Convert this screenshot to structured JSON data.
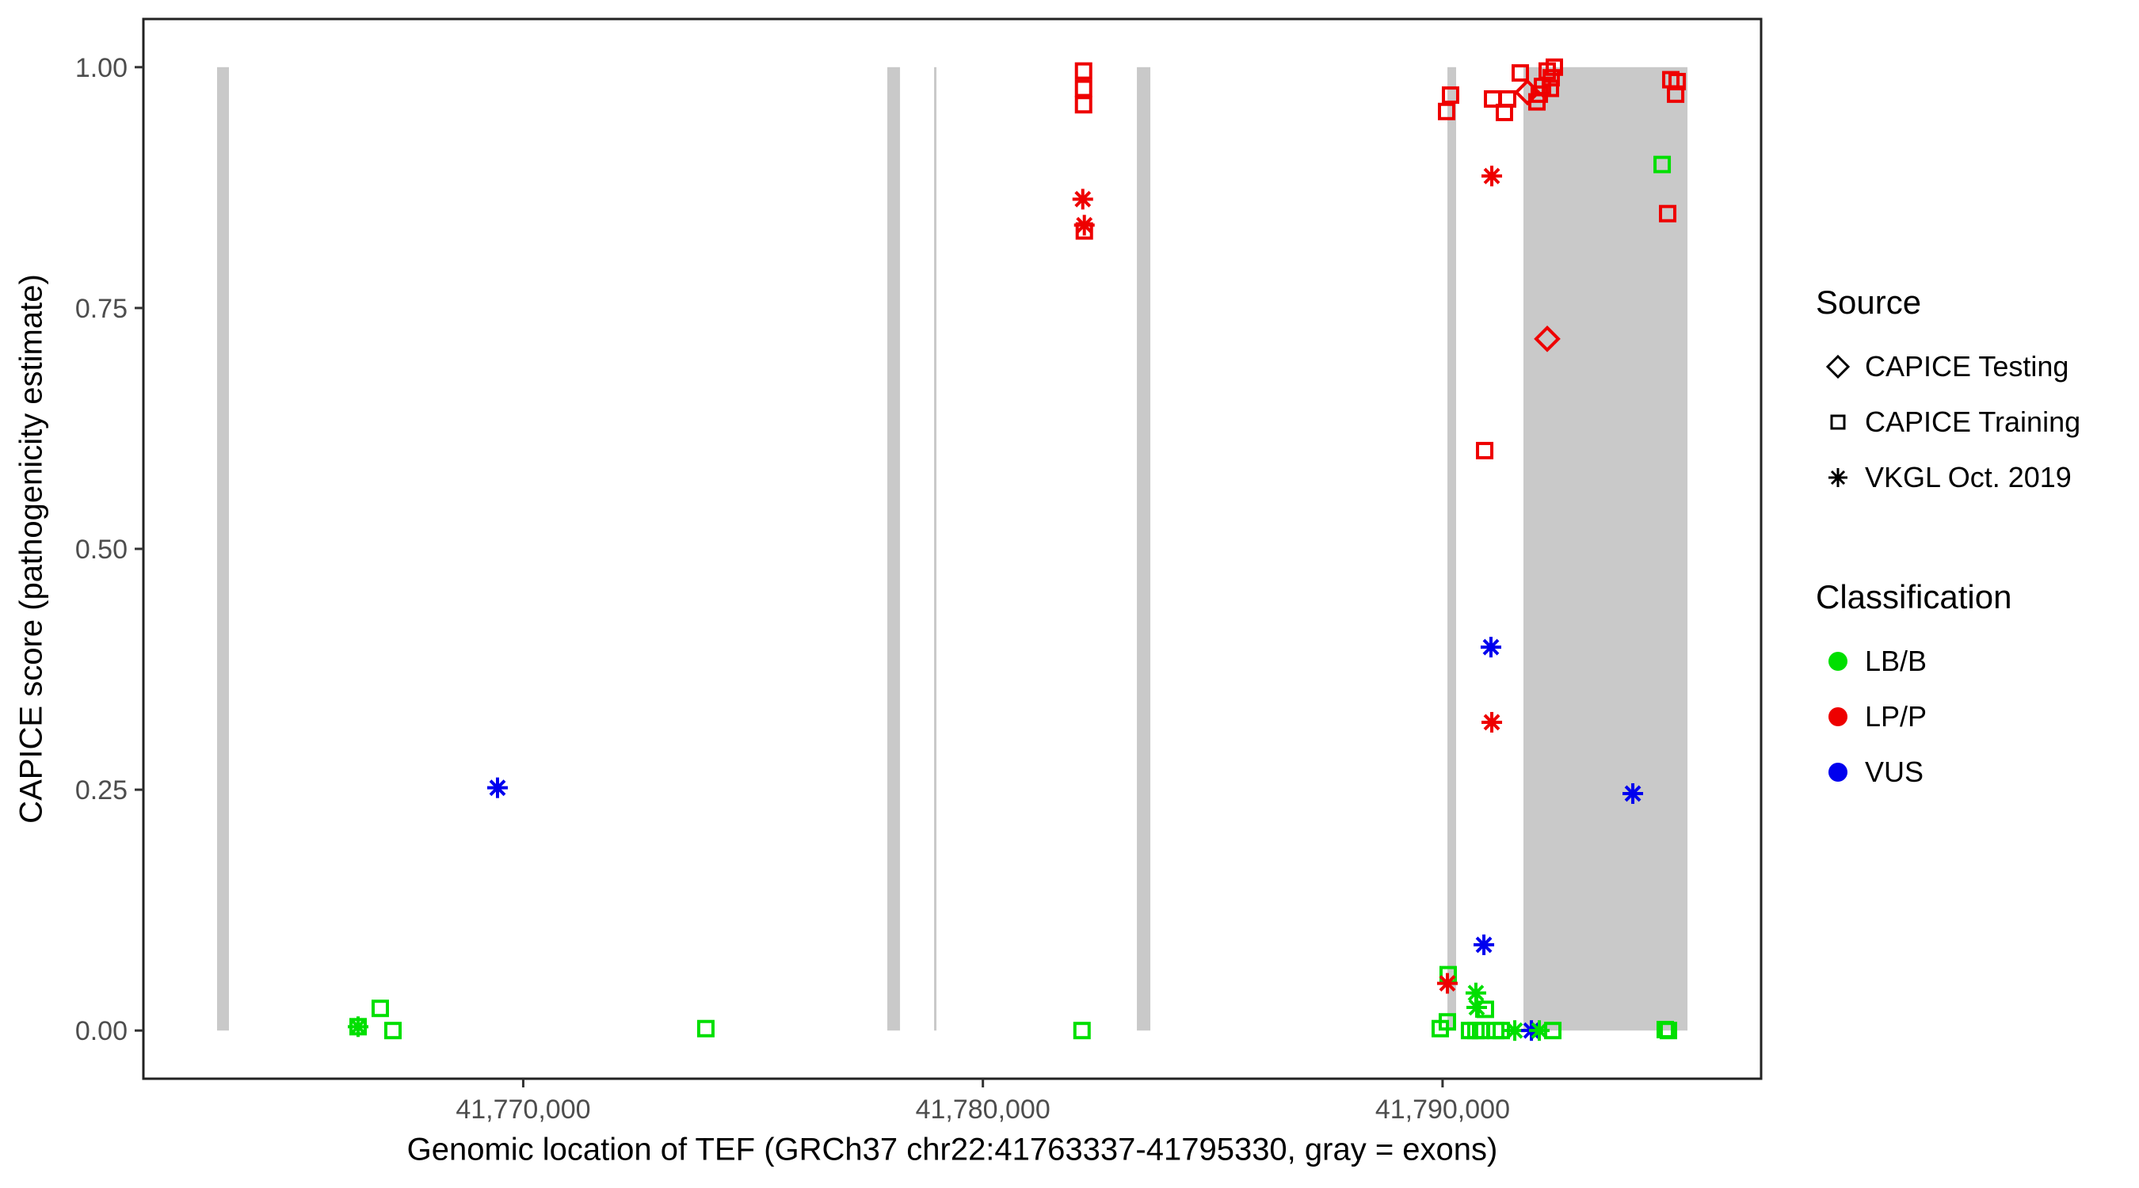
{
  "legend": {
    "source": {
      "title": "Source",
      "items": [
        {
          "label": "CAPICE Testing",
          "shape": "diamond"
        },
        {
          "label": "CAPICE Training",
          "shape": "square"
        },
        {
          "label": "VKGL Oct. 2019",
          "shape": "asterisk"
        }
      ]
    },
    "classification": {
      "title": "Classification",
      "items": [
        {
          "label": "LB/B",
          "color": "#00DF00"
        },
        {
          "label": "LP/P",
          "color": "#EE0000"
        },
        {
          "label": "VUS",
          "color": "#0000EE"
        }
      ]
    }
  },
  "chart_data": {
    "type": "scatter",
    "title": "",
    "xlabel": "Genomic location of TEF (GRCh37 chr22:41763337-41795330, gray = exons)",
    "ylabel": "CAPICE score (pathogenicity estimate)",
    "xlim": [
      41761737,
      41796930
    ],
    "ylim": [
      -0.05,
      1.05
    ],
    "grid": false,
    "legend_position": "right",
    "x_ticks": [
      {
        "v": 41770000,
        "label": "41,770,000"
      },
      {
        "v": 41780000,
        "label": "41,780,000"
      },
      {
        "v": 41790000,
        "label": "41,790,000"
      }
    ],
    "y_ticks": [
      {
        "v": 0.0,
        "label": "0.00"
      },
      {
        "v": 0.25,
        "label": "0.25"
      },
      {
        "v": 0.5,
        "label": "0.50"
      },
      {
        "v": 0.75,
        "label": "0.75"
      },
      {
        "v": 1.0,
        "label": "1.00"
      }
    ],
    "colors": {
      "LB/B": "#00DF00",
      "LP/P": "#EE0000",
      "VUS": "#0000EE",
      "exon": "#C9C9C9"
    },
    "shape_source_map": {
      "diamond": "CAPICE Testing",
      "square": "CAPICE Training",
      "asterisk": "VKGL Oct. 2019"
    },
    "exons": [
      [
        41763340,
        41763598
      ],
      [
        41777921,
        41778197
      ],
      [
        41778938,
        41778990
      ],
      [
        41783350,
        41783643
      ],
      [
        41790106,
        41790295
      ],
      [
        41791760,
        41795328
      ]
    ],
    "points": [
      {
        "x": 41766408,
        "y": 0.004,
        "shape": "square",
        "cls": "LB/B"
      },
      {
        "x": 41766408,
        "y": 0.004,
        "shape": "asterisk",
        "cls": "LB/B"
      },
      {
        "x": 41766890,
        "y": 0.023,
        "shape": "square",
        "cls": "LB/B"
      },
      {
        "x": 41767166,
        "y": 0.0,
        "shape": "square",
        "cls": "LB/B"
      },
      {
        "x": 41769441,
        "y": 0.252,
        "shape": "asterisk",
        "cls": "VUS"
      },
      {
        "x": 41773973,
        "y": 0.002,
        "shape": "square",
        "cls": "LB/B"
      },
      {
        "x": 41782190,
        "y": 0.996,
        "shape": "square",
        "cls": "LP/P"
      },
      {
        "x": 41782190,
        "y": 0.978,
        "shape": "square",
        "cls": "LP/P"
      },
      {
        "x": 41782190,
        "y": 0.961,
        "shape": "square",
        "cls": "LP/P"
      },
      {
        "x": 41782173,
        "y": 0.863,
        "shape": "asterisk",
        "cls": "LP/P"
      },
      {
        "x": 41782207,
        "y": 0.836,
        "shape": "asterisk",
        "cls": "LP/P"
      },
      {
        "x": 41782207,
        "y": 0.83,
        "shape": "square",
        "cls": "LP/P"
      },
      {
        "x": 41782156,
        "y": 0.0,
        "shape": "square",
        "cls": "LB/B"
      },
      {
        "x": 41790088,
        "y": 0.954,
        "shape": "square",
        "cls": "LP/P"
      },
      {
        "x": 41790174,
        "y": 0.971,
        "shape": "square",
        "cls": "LP/P"
      },
      {
        "x": 41791088,
        "y": 0.967,
        "shape": "square",
        "cls": "LP/P"
      },
      {
        "x": 41791346,
        "y": 0.953,
        "shape": "square",
        "cls": "LP/P"
      },
      {
        "x": 41791415,
        "y": 0.967,
        "shape": "square",
        "cls": "LP/P"
      },
      {
        "x": 41791691,
        "y": 0.994,
        "shape": "square",
        "cls": "LP/P"
      },
      {
        "x": 41791846,
        "y": 0.974,
        "shape": "diamond",
        "cls": "LP/P"
      },
      {
        "x": 41792053,
        "y": 0.964,
        "shape": "square",
        "cls": "LP/P"
      },
      {
        "x": 41792105,
        "y": 0.972,
        "shape": "square",
        "cls": "LP/P"
      },
      {
        "x": 41792174,
        "y": 0.98,
        "shape": "square",
        "cls": "LP/P"
      },
      {
        "x": 41792277,
        "y": 0.996,
        "shape": "square",
        "cls": "LP/P"
      },
      {
        "x": 41792346,
        "y": 0.978,
        "shape": "square",
        "cls": "LP/P"
      },
      {
        "x": 41792363,
        "y": 0.989,
        "shape": "square",
        "cls": "LP/P"
      },
      {
        "x": 41792432,
        "y": 1.0,
        "shape": "square",
        "cls": "LP/P"
      },
      {
        "x": 41791071,
        "y": 0.887,
        "shape": "asterisk",
        "cls": "LP/P"
      },
      {
        "x": 41792277,
        "y": 0.718,
        "shape": "diamond",
        "cls": "LP/P"
      },
      {
        "x": 41790916,
        "y": 0.602,
        "shape": "square",
        "cls": "LP/P"
      },
      {
        "x": 41791053,
        "y": 0.398,
        "shape": "asterisk",
        "cls": "VUS"
      },
      {
        "x": 41791071,
        "y": 0.32,
        "shape": "asterisk",
        "cls": "LP/P"
      },
      {
        "x": 41794139,
        "y": 0.246,
        "shape": "asterisk",
        "cls": "VUS"
      },
      {
        "x": 41790899,
        "y": 0.089,
        "shape": "asterisk",
        "cls": "VUS"
      },
      {
        "x": 41794966,
        "y": 0.987,
        "shape": "square",
        "cls": "LP/P"
      },
      {
        "x": 41795104,
        "y": 0.985,
        "shape": "square",
        "cls": "LP/P"
      },
      {
        "x": 41795070,
        "y": 0.972,
        "shape": "square",
        "cls": "LP/P"
      },
      {
        "x": 41794777,
        "y": 0.899,
        "shape": "square",
        "cls": "LB/B"
      },
      {
        "x": 41794897,
        "y": 0.848,
        "shape": "square",
        "cls": "LP/P"
      },
      {
        "x": 41790122,
        "y": 0.058,
        "shape": "square",
        "cls": "LB/B"
      },
      {
        "x": 41790105,
        "y": 0.049,
        "shape": "asterisk",
        "cls": "LP/P"
      },
      {
        "x": 41790725,
        "y": 0.039,
        "shape": "asterisk",
        "cls": "LB/B"
      },
      {
        "x": 41790743,
        "y": 0.024,
        "shape": "asterisk",
        "cls": "LB/B"
      },
      {
        "x": 41790932,
        "y": 0.022,
        "shape": "square",
        "cls": "LB/B"
      },
      {
        "x": 41789950,
        "y": 0.002,
        "shape": "square",
        "cls": "LB/B"
      },
      {
        "x": 41790105,
        "y": 0.009,
        "shape": "square",
        "cls": "LB/B"
      },
      {
        "x": 41790587,
        "y": 0.0,
        "shape": "square",
        "cls": "LB/B"
      },
      {
        "x": 41790725,
        "y": 0.0,
        "shape": "square",
        "cls": "LB/B"
      },
      {
        "x": 41790828,
        "y": 0.0,
        "shape": "square",
        "cls": "LB/B"
      },
      {
        "x": 41791157,
        "y": 0.0,
        "shape": "square",
        "cls": "LB/B"
      },
      {
        "x": 41791278,
        "y": 0.0,
        "shape": "square",
        "cls": "LB/B"
      },
      {
        "x": 41791571,
        "y": 0.0,
        "shape": "asterisk",
        "cls": "LB/B"
      },
      {
        "x": 41791933,
        "y": 0.0,
        "shape": "asterisk",
        "cls": "VUS"
      },
      {
        "x": 41792105,
        "y": 0.0,
        "shape": "asterisk",
        "cls": "LB/B"
      },
      {
        "x": 41792398,
        "y": 0.0,
        "shape": "square",
        "cls": "LB/B"
      },
      {
        "x": 41794845,
        "y": 0.001,
        "shape": "square",
        "cls": "LB/B"
      },
      {
        "x": 41794914,
        "y": 0.0,
        "shape": "square",
        "cls": "LB/B"
      }
    ]
  }
}
